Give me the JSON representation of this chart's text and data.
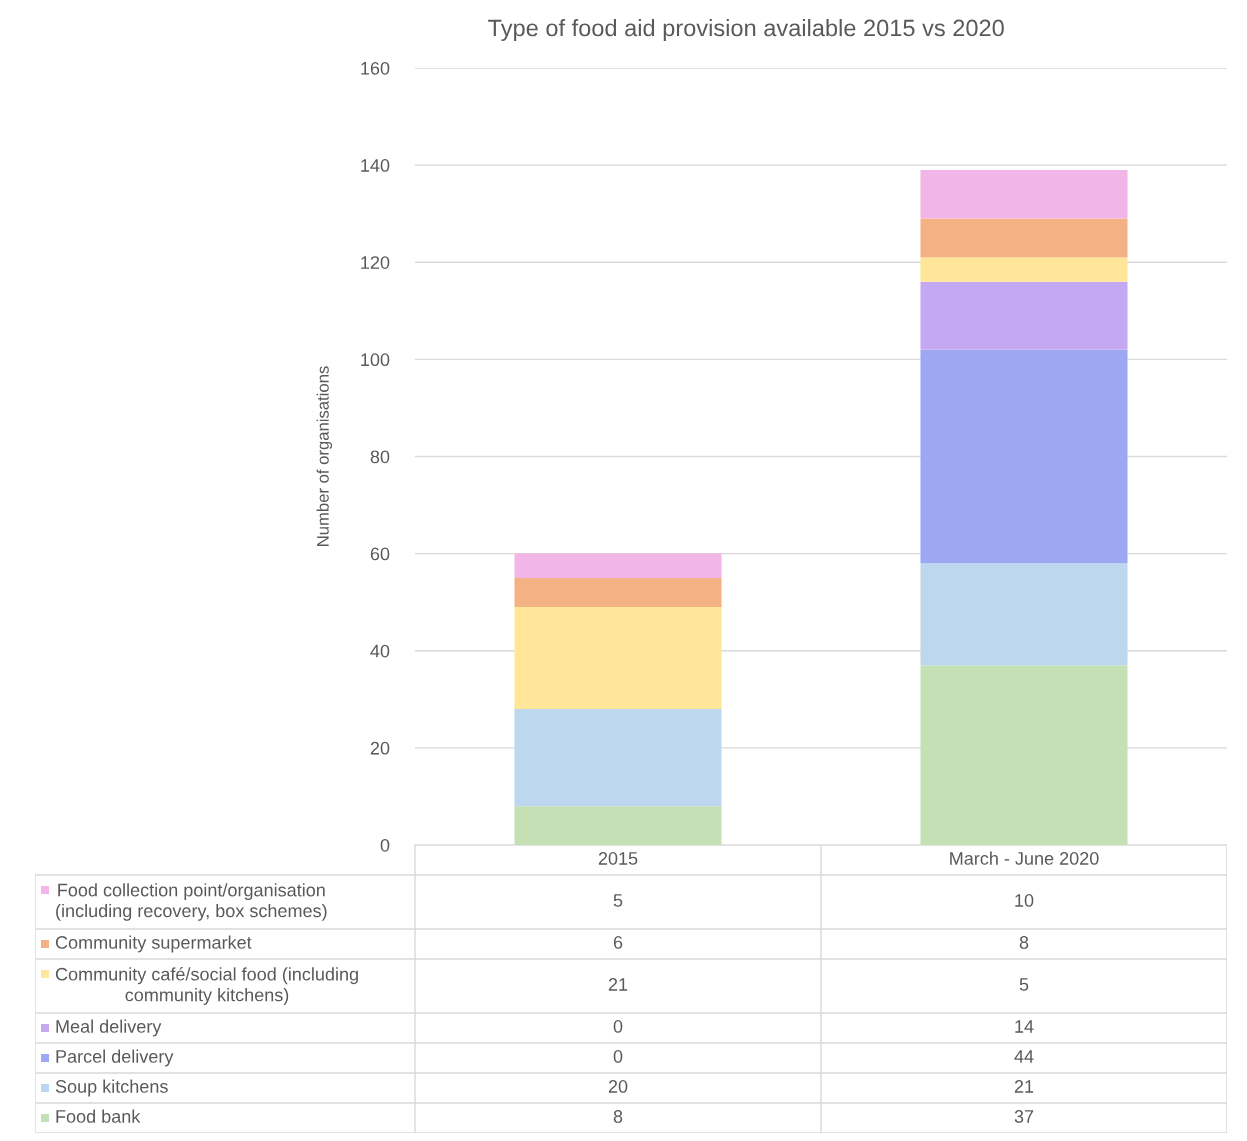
{
  "chart_data": {
    "type": "bar",
    "title": "Type of food aid provision available 2015 vs 2020",
    "ylabel": "Number of organisations",
    "categories": [
      "2015",
      "March - June 2020"
    ],
    "stacked": true,
    "data_labels": true,
    "grid": "y",
    "legend": "bottom",
    "ylim": [
      0,
      160
    ],
    "yticks": [
      0,
      20,
      40,
      60,
      80,
      100,
      120,
      140,
      160
    ],
    "series": [
      {
        "name": "Food bank",
        "color": "#c5e0b4",
        "values": [
          8,
          37
        ]
      },
      {
        "name": "Soup kitchens",
        "color": "#bdd7ee",
        "values": [
          20,
          21
        ]
      },
      {
        "name": "Parcel delivery",
        "color": "#9da8f2",
        "values": [
          0,
          44
        ]
      },
      {
        "name": "Meal delivery",
        "color": "#c5a8f2",
        "values": [
          0,
          14
        ]
      },
      {
        "name": "Community café/social food (including community kitchens)",
        "color": "#ffe699",
        "values": [
          21,
          5
        ]
      },
      {
        "name": "Community supermarket",
        "color": "#f4b183",
        "values": [
          6,
          8
        ]
      },
      {
        "name": "Food collection point/organisation (including recovery, box schemes)",
        "color": "#f2b5e8",
        "values": [
          5,
          10
        ]
      }
    ]
  }
}
